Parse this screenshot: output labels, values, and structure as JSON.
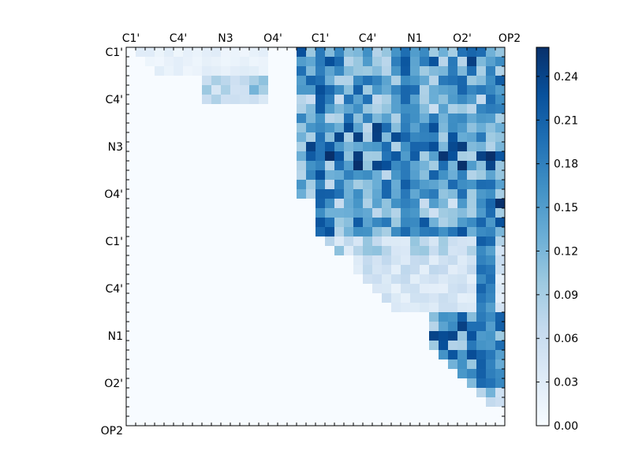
{
  "chart_data": {
    "type": "heatmap",
    "title": "",
    "xlabel": "",
    "ylabel": "",
    "xtick_labels": [
      "C1'",
      "C4'",
      "N3",
      "O4'",
      "C1'",
      "C4'",
      "N1",
      "O2'",
      "OP2"
    ],
    "ytick_labels": [
      "C1'",
      "C4'",
      "N3",
      "O4'",
      "C1'",
      "C4'",
      "N1",
      "O2'",
      "OP2"
    ],
    "colormap": "Blues",
    "colormap_stops": [
      "#f7fbff",
      "#deebf7",
      "#c6dbef",
      "#9ecae1",
      "#6baed6",
      "#4292c6",
      "#2171b5",
      "#08519c",
      "#08306b"
    ],
    "color_range": [
      0,
      0.26
    ],
    "grid_size": 40,
    "triangle": "upper",
    "colorbar": {
      "ticks": [
        0.0,
        0.03,
        0.06,
        0.09,
        0.12,
        0.15,
        0.18,
        0.21,
        0.24
      ],
      "tick_labels": [
        "0.00",
        "0.03",
        "0.06",
        "0.09",
        "0.12",
        "0.15",
        "0.18",
        "0.21",
        "0.24"
      ]
    },
    "blocks": [
      {
        "rows": [
          0,
          3
        ],
        "cols": [
          1,
          15
        ],
        "value": 0.02
      },
      {
        "rows": [
          3,
          6
        ],
        "cols": [
          8,
          15
        ],
        "value": 0.08
      },
      {
        "rows": [
          0,
          2
        ],
        "cols": [
          18,
          40
        ],
        "value": 0.16
      },
      {
        "rows": [
          2,
          5
        ],
        "cols": [
          18,
          40
        ],
        "value": 0.14
      },
      {
        "rows": [
          5,
          8
        ],
        "cols": [
          18,
          40
        ],
        "value": 0.13
      },
      {
        "rows": [
          8,
          11
        ],
        "cols": [
          18,
          40
        ],
        "value": 0.16
      },
      {
        "rows": [
          11,
          13
        ],
        "cols": [
          18,
          40
        ],
        "value": 0.18
      },
      {
        "rows": [
          13,
          16
        ],
        "cols": [
          18,
          40
        ],
        "value": 0.14
      },
      {
        "rows": [
          16,
          18
        ],
        "cols": [
          20,
          40
        ],
        "value": 0.11
      },
      {
        "rows": [
          18,
          20
        ],
        "cols": [
          20,
          40
        ],
        "value": 0.15
      },
      {
        "rows": [
          20,
          22
        ],
        "cols": [
          20,
          40
        ],
        "value": 0.07
      },
      {
        "rows": [
          22,
          25
        ],
        "cols": [
          24,
          40
        ],
        "value": 0.05
      },
      {
        "rows": [
          25,
          28
        ],
        "cols": [
          26,
          40
        ],
        "value": 0.04
      },
      {
        "rows": [
          28,
          33
        ],
        "cols": [
          32,
          40
        ],
        "value": 0.16
      },
      {
        "rows": [
          33,
          36
        ],
        "cols": [
          34,
          40
        ],
        "value": 0.13
      },
      {
        "rows": [
          36,
          38
        ],
        "cols": [
          36,
          40
        ],
        "value": 0.09
      }
    ],
    "strong_columns": [
      {
        "col": 20,
        "rows": [
          0,
          20
        ],
        "value": 0.2
      },
      {
        "col": 29,
        "rows": [
          0,
          20
        ],
        "value": 0.19
      },
      {
        "col": 30,
        "rows": [
          0,
          20
        ],
        "value": 0.17
      },
      {
        "col": 37,
        "rows": [
          14,
          36
        ],
        "value": 0.19
      },
      {
        "col": 38,
        "rows": [
          14,
          36
        ],
        "value": 0.18
      }
    ],
    "peaks": [
      {
        "row": 16,
        "col": 39,
        "value": 0.26
      },
      {
        "row": 17,
        "col": 38,
        "value": 0.2
      },
      {
        "row": 13,
        "col": 32,
        "value": 0.21
      },
      {
        "row": 10,
        "col": 27,
        "value": 0.2
      },
      {
        "row": 14,
        "col": 37,
        "value": 0.2
      }
    ]
  }
}
